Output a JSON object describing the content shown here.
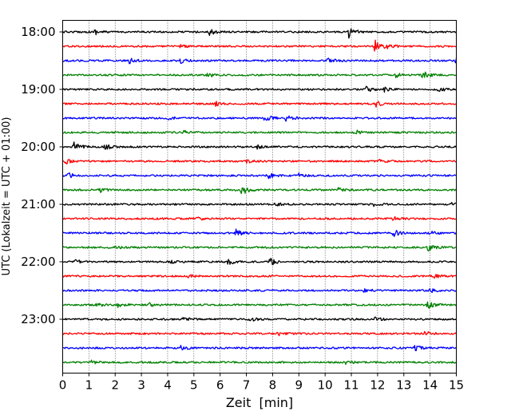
{
  "chart_data": {
    "type": "line",
    "xlabel": "Zeit  [min]",
    "ylabel": "UTC (Lokalzeit = UTC + 01:00)",
    "xlim": [
      0,
      15
    ],
    "x_ticks": [
      0,
      1,
      2,
      3,
      4,
      5,
      6,
      7,
      8,
      9,
      10,
      11,
      12,
      13,
      14,
      15
    ],
    "grid": "vertical-dotted",
    "y_ticks": [
      {
        "label": "18:00",
        "trace": 0
      },
      {
        "label": "19:00",
        "trace": 4
      },
      {
        "label": "20:00",
        "trace": 8
      },
      {
        "label": "21:00",
        "trace": 12
      },
      {
        "label": "22:00",
        "trace": 16
      },
      {
        "label": "23:00",
        "trace": 20
      }
    ],
    "colors": [
      "#000000",
      "#ff0000",
      "#0000ff",
      "#008000"
    ],
    "traces": [
      {
        "start": "18:00",
        "color": "#000000",
        "events": [
          [
            1.2,
            0.5
          ],
          [
            5.6,
            0.7
          ],
          [
            10.9,
            1.0
          ]
        ]
      },
      {
        "start": "18:15",
        "color": "#ff0000",
        "events": [
          [
            4.5,
            0.3
          ],
          [
            11.9,
            1.1
          ],
          [
            12.3,
            0.7
          ]
        ]
      },
      {
        "start": "18:30",
        "color": "#0000ff",
        "events": [
          [
            2.5,
            0.6
          ],
          [
            4.5,
            0.4
          ],
          [
            10.1,
            0.5
          ],
          [
            15.0,
            0.8
          ]
        ]
      },
      {
        "start": "18:45",
        "color": "#008000",
        "events": [
          [
            5.5,
            0.5
          ],
          [
            12.7,
            0.4
          ],
          [
            13.7,
            0.7
          ]
        ]
      },
      {
        "start": "19:00",
        "color": "#000000",
        "events": [
          [
            11.5,
            0.6
          ],
          [
            12.2,
            0.5
          ],
          [
            14.3,
            0.4
          ]
        ]
      },
      {
        "start": "19:15",
        "color": "#ff0000",
        "events": [
          [
            5.8,
            0.4
          ],
          [
            11.9,
            0.6
          ]
        ]
      },
      {
        "start": "19:30",
        "color": "#0000ff",
        "events": [
          [
            7.7,
            0.6
          ],
          [
            8.5,
            0.5
          ],
          [
            4.0,
            0.3
          ]
        ]
      },
      {
        "start": "19:45",
        "color": "#008000",
        "events": [
          [
            4.6,
            0.3
          ],
          [
            11.2,
            0.3
          ]
        ]
      },
      {
        "start": "20:00",
        "color": "#000000",
        "events": [
          [
            0.4,
            0.9
          ],
          [
            1.6,
            0.5
          ],
          [
            7.4,
            0.3
          ],
          [
            15.0,
            0.5
          ]
        ]
      },
      {
        "start": "20:15",
        "color": "#ff0000",
        "events": [
          [
            0.1,
            0.5
          ],
          [
            7.0,
            0.3
          ],
          [
            12.0,
            0.3
          ]
        ]
      },
      {
        "start": "20:30",
        "color": "#0000ff",
        "events": [
          [
            0.2,
            0.6
          ],
          [
            7.8,
            0.5
          ],
          [
            9.0,
            0.3
          ]
        ]
      },
      {
        "start": "20:45",
        "color": "#008000",
        "events": [
          [
            1.4,
            0.4
          ],
          [
            6.8,
            1.0
          ],
          [
            10.5,
            0.4
          ]
        ]
      },
      {
        "start": "21:00",
        "color": "#000000",
        "events": [
          [
            8.1,
            0.3
          ],
          [
            11.8,
            0.3
          ],
          [
            14.8,
            0.3
          ]
        ]
      },
      {
        "start": "21:15",
        "color": "#ff0000",
        "events": [
          [
            5.1,
            0.3
          ],
          [
            12.6,
            0.3
          ]
        ]
      },
      {
        "start": "21:30",
        "color": "#0000ff",
        "events": [
          [
            6.6,
            0.6
          ],
          [
            12.6,
            0.6
          ],
          [
            14.0,
            0.3
          ]
        ]
      },
      {
        "start": "21:45",
        "color": "#008000",
        "events": [
          [
            2.0,
            0.3
          ],
          [
            13.9,
            0.6
          ]
        ]
      },
      {
        "start": "22:00",
        "color": "#000000",
        "events": [
          [
            0.5,
            0.4
          ],
          [
            6.3,
            0.6
          ],
          [
            7.9,
            0.6
          ],
          [
            4.1,
            0.3
          ]
        ]
      },
      {
        "start": "22:15",
        "color": "#ff0000",
        "events": [
          [
            4.8,
            0.3
          ],
          [
            14.1,
            0.6
          ]
        ]
      },
      {
        "start": "22:30",
        "color": "#0000ff",
        "events": [
          [
            11.5,
            0.3
          ],
          [
            14.0,
            0.3
          ]
        ]
      },
      {
        "start": "22:45",
        "color": "#008000",
        "events": [
          [
            1.3,
            0.4
          ],
          [
            2.1,
            0.4
          ],
          [
            3.3,
            0.5
          ],
          [
            13.9,
            0.7
          ]
        ]
      },
      {
        "start": "23:00",
        "color": "#000000",
        "events": [
          [
            7.1,
            0.5
          ],
          [
            4.6,
            0.3
          ],
          [
            11.9,
            0.3
          ]
        ]
      },
      {
        "start": "23:15",
        "color": "#ff0000",
        "events": [
          [
            8.2,
            0.3
          ],
          [
            13.8,
            0.4
          ]
        ]
      },
      {
        "start": "23:30",
        "color": "#0000ff",
        "events": [
          [
            4.5,
            0.5
          ],
          [
            13.4,
            0.5
          ]
        ]
      },
      {
        "start": "23:45",
        "color": "#008000",
        "events": [
          [
            10.8,
            0.4
          ],
          [
            1.1,
            0.3
          ]
        ]
      }
    ]
  }
}
